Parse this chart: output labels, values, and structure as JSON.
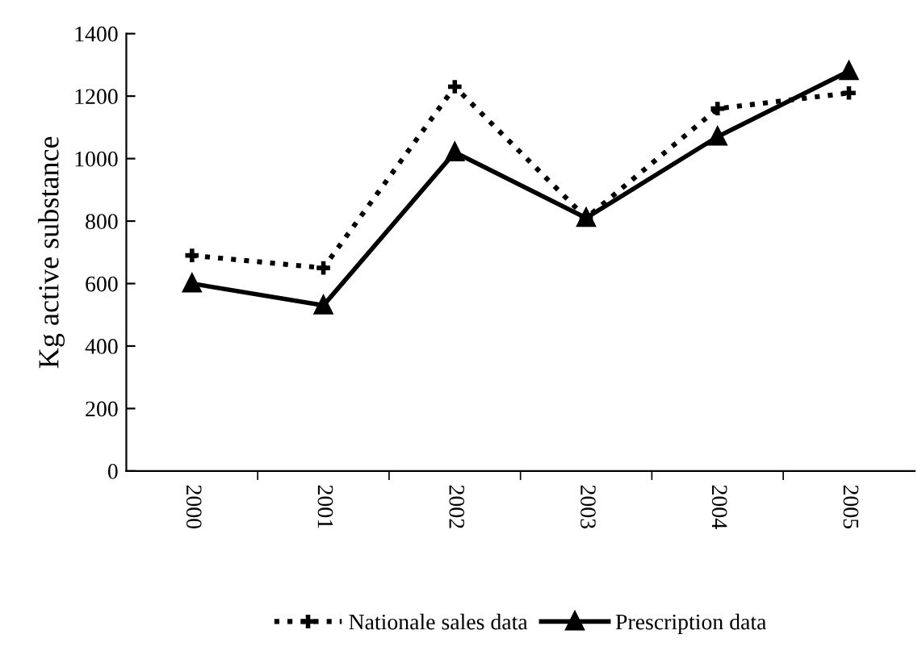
{
  "chart_data": {
    "type": "line",
    "ylabel": "Kg active substance",
    "categories": [
      "2000",
      "2001",
      "2002",
      "2003",
      "2004",
      "2005"
    ],
    "series": [
      {
        "name": "Nationale sales data",
        "color": "#000000",
        "values": [
          690,
          650,
          1230,
          810,
          1160,
          1210
        ],
        "marker": "cross",
        "line_style": "dotted"
      },
      {
        "name": "Prescription data",
        "color": "#000000",
        "values": [
          600,
          530,
          1020,
          810,
          1070,
          1280
        ],
        "marker": "triangle",
        "line_style": "solid"
      }
    ],
    "ylim": [
      0,
      1400
    ],
    "yticks": [
      0,
      200,
      400,
      600,
      800,
      1000,
      1200,
      1400
    ],
    "grid": false,
    "legend": "bottom"
  }
}
